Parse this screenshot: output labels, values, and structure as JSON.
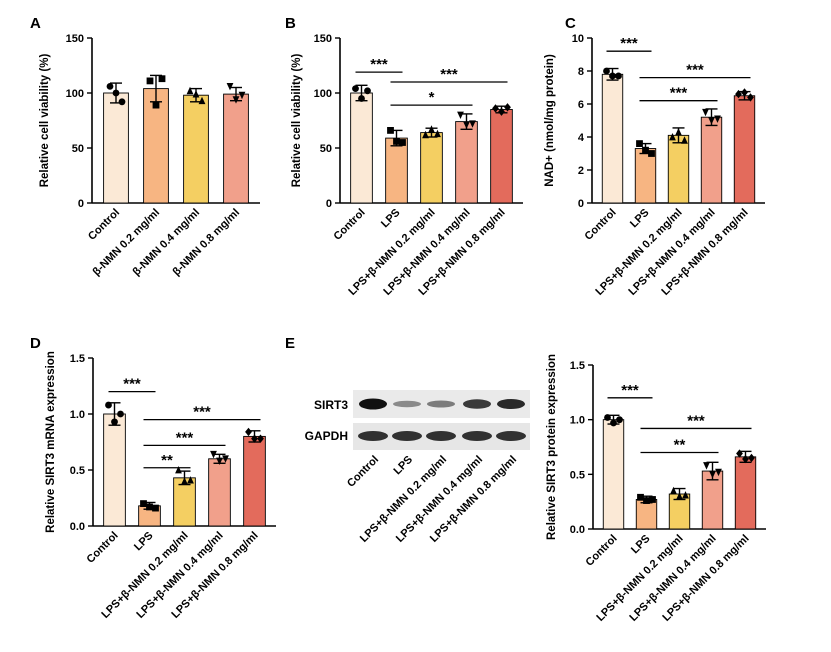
{
  "panel_letters": [
    "A",
    "B",
    "C",
    "D",
    "E"
  ],
  "colors": {
    "control": "#fbe9d6",
    "lps": "#f7b582",
    "c1": "#f4cf62",
    "c2": "#f1a08b",
    "c3": "#e36b5c",
    "axis": "#000000"
  },
  "blot": {
    "labels": [
      "SIRT3",
      "GAPDH"
    ],
    "lanes": [
      "Control",
      "LPS",
      "LPS+β-NMN 0.2 mg/ml",
      "LPS+β-NMN 0.4 mg/ml",
      "LPS+β-NMN 0.8 mg/ml"
    ],
    "sirt3_intensity": [
      1.0,
      0.25,
      0.35,
      0.75,
      0.85
    ],
    "gapdh_intensity": [
      1.0,
      1.0,
      1.0,
      1.0,
      1.0
    ]
  },
  "chart_data": [
    {
      "id": "A",
      "type": "bar",
      "categories": [
        "Control",
        "β-NMN 0.2 mg/ml",
        "β-NMN 0.4 mg/ml",
        "β-NMN 0.8 mg/ml"
      ],
      "values": [
        100,
        104,
        98,
        99
      ],
      "errors": [
        9,
        12,
        6,
        6
      ],
      "points": [
        [
          106,
          100,
          92
        ],
        [
          111,
          89,
          113
        ],
        [
          102,
          99,
          93
        ],
        [
          106,
          94,
          98
        ]
      ],
      "color_keys": [
        "control",
        "lps",
        "c1",
        "c2"
      ],
      "ylabel": "Relative cell viability (%)",
      "ylim": [
        0,
        150
      ],
      "yticks": [
        0,
        50,
        100,
        150
      ],
      "brackets": []
    },
    {
      "id": "B",
      "type": "bar",
      "categories": [
        "Control",
        "LPS",
        "LPS+β-NMN 0.2 mg/ml",
        "LPS+β-NMN 0.4 mg/ml",
        "LPS+β-NMN 0.8 mg/ml"
      ],
      "values": [
        100,
        59,
        64,
        74,
        85
      ],
      "errors": [
        7,
        7,
        4,
        7,
        3
      ],
      "points": [
        [
          104,
          95,
          102
        ],
        [
          66,
          56,
          55
        ],
        [
          62,
          67,
          63
        ],
        [
          80,
          71,
          72
        ],
        [
          86,
          83,
          87
        ]
      ],
      "color_keys": [
        "control",
        "lps",
        "c1",
        "c2",
        "c3"
      ],
      "ylabel": "Relative cell viability (%)",
      "ylim": [
        0,
        150
      ],
      "yticks": [
        0,
        50,
        100,
        150
      ],
      "brackets": [
        {
          "from": 0,
          "to": 1,
          "y": 119,
          "label": "***"
        },
        {
          "from": 1,
          "to": 4,
          "y": 110,
          "label": "***"
        },
        {
          "from": 1,
          "to": 3,
          "y": 89,
          "label": "*"
        }
      ]
    },
    {
      "id": "C",
      "type": "bar",
      "categories": [
        "Control",
        "LPS",
        "LPS+β-NMN 0.2 mg/ml",
        "LPS+β-NMN 0.4 mg/ml",
        "LPS+β-NMN 0.8 mg/ml"
      ],
      "values": [
        7.8,
        3.3,
        4.1,
        5.2,
        6.5
      ],
      "errors": [
        0.35,
        0.3,
        0.45,
        0.5,
        0.25
      ],
      "points": [
        [
          8.0,
          7.7,
          7.7
        ],
        [
          3.6,
          3.2,
          3.0
        ],
        [
          4.0,
          4.3,
          3.8
        ],
        [
          5.5,
          5.0,
          5.1
        ],
        [
          6.6,
          6.7,
          6.4
        ]
      ],
      "color_keys": [
        "control",
        "lps",
        "c1",
        "c2",
        "c3"
      ],
      "ylabel": "NAD+ (nmol/mg protein)",
      "ylim": [
        0,
        10
      ],
      "yticks": [
        0,
        2,
        4,
        6,
        8,
        10
      ],
      "brackets": [
        {
          "from": 0,
          "to": 1,
          "y": 9.2,
          "label": "***"
        },
        {
          "from": 1,
          "to": 4,
          "y": 7.6,
          "label": "***"
        },
        {
          "from": 1,
          "to": 3,
          "y": 6.2,
          "label": "***"
        }
      ]
    },
    {
      "id": "D",
      "type": "bar",
      "categories": [
        "Control",
        "LPS",
        "LPS+β-NMN 0.2 mg/ml",
        "LPS+β-NMN 0.4 mg/ml",
        "LPS+β-NMN 0.8 mg/ml"
      ],
      "values": [
        1.0,
        0.18,
        0.43,
        0.6,
        0.8
      ],
      "errors": [
        0.1,
        0.03,
        0.06,
        0.04,
        0.05
      ],
      "points": [
        [
          1.08,
          0.93,
          1.0
        ],
        [
          0.2,
          0.17,
          0.16
        ],
        [
          0.5,
          0.4,
          0.41
        ],
        [
          0.64,
          0.58,
          0.6
        ],
        [
          0.84,
          0.78,
          0.78
        ]
      ],
      "color_keys": [
        "control",
        "lps",
        "c1",
        "c2",
        "c3"
      ],
      "ylabel": "Relative SIRT3 mRNA expression",
      "ylim": [
        0,
        1.5
      ],
      "yticks": [
        0.0,
        0.5,
        1.0,
        1.5
      ],
      "brackets": [
        {
          "from": 0,
          "to": 1,
          "y": 1.2,
          "label": "***"
        },
        {
          "from": 1,
          "to": 4,
          "y": 0.95,
          "label": "***"
        },
        {
          "from": 1,
          "to": 3,
          "y": 0.72,
          "label": "***"
        },
        {
          "from": 1,
          "to": 2,
          "y": 0.52,
          "label": "**"
        }
      ]
    },
    {
      "id": "E",
      "type": "bar",
      "categories": [
        "Control",
        "LPS",
        "LPS+β-NMN 0.2 mg/ml",
        "LPS+β-NMN 0.4 mg/ml",
        "LPS+β-NMN 0.8 mg/ml"
      ],
      "values": [
        1.0,
        0.27,
        0.32,
        0.53,
        0.66
      ],
      "errors": [
        0.04,
        0.03,
        0.05,
        0.08,
        0.05
      ],
      "points": [
        [
          1.02,
          0.97,
          1.0
        ],
        [
          0.29,
          0.26,
          0.27
        ],
        [
          0.35,
          0.3,
          0.31
        ],
        [
          0.58,
          0.5,
          0.52
        ],
        [
          0.69,
          0.64,
          0.65
        ]
      ],
      "color_keys": [
        "control",
        "lps",
        "c1",
        "c2",
        "c3"
      ],
      "ylabel": "Relative SIRT3 protein expression",
      "ylim": [
        0,
        1.5
      ],
      "yticks": [
        0.0,
        0.5,
        1.0,
        1.5
      ],
      "brackets": [
        {
          "from": 0,
          "to": 1,
          "y": 1.2,
          "label": "***"
        },
        {
          "from": 1,
          "to": 4,
          "y": 0.92,
          "label": "***"
        },
        {
          "from": 1,
          "to": 3,
          "y": 0.7,
          "label": "**"
        }
      ]
    }
  ]
}
